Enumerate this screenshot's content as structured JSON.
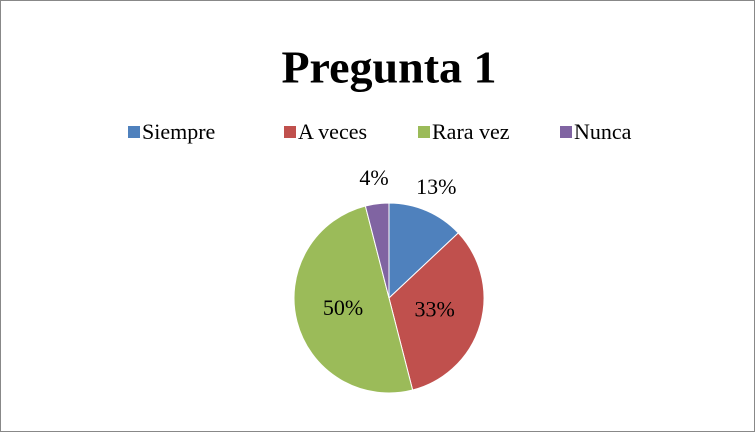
{
  "chart_data": {
    "type": "pie",
    "title": "Pregunta 1",
    "categories": [
      "Siempre",
      "A veces",
      "Rara vez",
      "Nunca"
    ],
    "values": [
      13,
      33,
      50,
      4
    ],
    "value_labels": [
      "13%",
      "33%",
      "50%",
      "4%"
    ],
    "colors": [
      "#4f81bd",
      "#c0504d",
      "#9bbb59",
      "#8064a2"
    ],
    "legend": "top"
  }
}
